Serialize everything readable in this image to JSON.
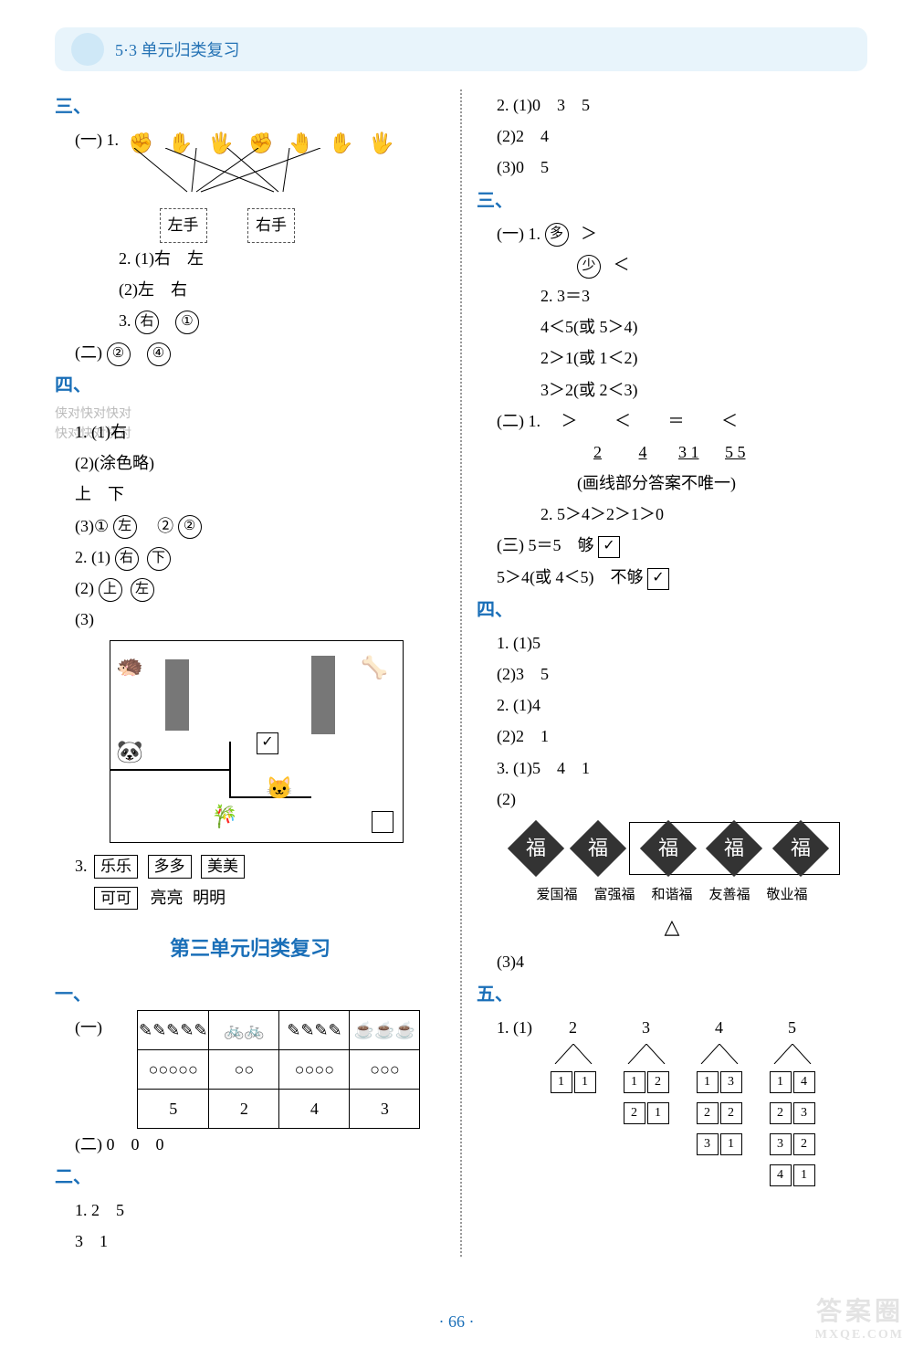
{
  "header": {
    "title": "5·3 单元归类复习"
  },
  "watermarks": {
    "kd1": "侠对快对快对",
    "kd2": "快对快对快对",
    "br_top": "答案圈",
    "br_sub": "MXQE.COM"
  },
  "page_number": "· 66 ·",
  "left": {
    "sec3": "三、",
    "s3_1_prefix": "(一) 1.",
    "hands_left_label": "左手",
    "hands_right_label": "右手",
    "s3_1_2": "2.  (1)右　左",
    "s3_1_2b": "    (2)左　右",
    "s3_1_3_pre": "3. ",
    "s3_1_3_a": "右",
    "s3_1_3_b": "①",
    "s3_2_pre": "(二) ",
    "s3_2_a": "②",
    "s3_2_b": "④",
    "sec4": "四、",
    "s4_1_1": "1.  (1)右",
    "s4_1_2": "    (2)(涂色略)",
    "s4_1_2b": "        上　下",
    "s4_1_3_pre": "    (3)①",
    "s4_1_3_a": "左",
    "s4_1_3_mid": "　②",
    "s4_1_3_b": "②",
    "s4_2_1_pre": "2.  (1)",
    "s4_2_1_a": "右",
    "s4_2_1_b": "下",
    "s4_2_2_pre": "    (2)",
    "s4_2_2_a": "上",
    "s4_2_2_b": "左",
    "s4_2_3": "    (3)",
    "maze_check": "✓",
    "s4_3_r1": [
      "乐乐",
      "多多",
      "美美"
    ],
    "s4_3_r2": [
      "可可",
      "亮亮",
      "明明"
    ],
    "unit_title": "第三单元归类复习",
    "sec1": "一、",
    "t_row1": [
      "✎✎✎✎✎",
      "🚲🚲",
      "✎✎✎✎",
      "☕☕☕"
    ],
    "t_row2": [
      "○○○○○",
      "○○",
      "○○○○",
      "○○○"
    ],
    "t_row3": [
      "5",
      "2",
      "4",
      "3"
    ],
    "s1_2": "(二) 0　0　0",
    "sec2": "二、",
    "s2_1": "1.  2　5",
    "s2_1b": "    3　1"
  },
  "right": {
    "r_top_1": "2.  (1)0　3　5",
    "r_top_2": "    (2)2　4",
    "r_top_3": "    (3)0　5",
    "sec3": "三、",
    "r3_1_pre": "(一) 1. ",
    "r3_1_a": "多",
    "r3_1_a2": "＞",
    "r3_1_b": "少",
    "r3_1_b2": "＜",
    "r3_2a": "2.  3＝3",
    "r3_2b": "    4＜5(或 5＞4)",
    "r3_2c": "    2＞1(或 1＜2)",
    "r3_2d": "    3＞2(或 2＜3)",
    "r3_ii_1_pre": "(二) 1.  ",
    "r3_ii_1_ops": [
      "＞",
      "＜",
      "＝",
      "＜"
    ],
    "r3_ii_1_nums": [
      "2",
      "4",
      "3  1",
      "5  5"
    ],
    "r3_ii_note": "(画线部分答案不唯一)",
    "r3_ii_2": "2.  5＞4＞2＞1＞0",
    "r3_iii_a_pre": "(三) 5＝5　够 ",
    "r3_iii_check": "✓",
    "r3_iii_b_pre": "     5＞4(或 4＜5)　不够 ",
    "sec4": "四、",
    "r4_1a": "1.  (1)5",
    "r4_1b": "    (2)3　5",
    "r4_2a": "2.  (1)4",
    "r4_2b": "    (2)2　1",
    "r4_3a": "3.  (1)5　4　1",
    "r4_3b": "    (2)",
    "fu_char": "福",
    "fu_labels": [
      "爱国福",
      "富强福",
      "和谐福",
      "友善福",
      "敬业福"
    ],
    "triangle": "△",
    "r4_3c": "    (3)4",
    "sec5": "五、",
    "r5_pre": "1.  (1)",
    "splits": {
      "2": [
        [
          "1",
          "1"
        ]
      ],
      "3": [
        [
          "1",
          "2"
        ],
        [
          "2",
          "1"
        ]
      ],
      "4": [
        [
          "1",
          "3"
        ],
        [
          "2",
          "2"
        ],
        [
          "3",
          "1"
        ]
      ],
      "5": [
        [
          "1",
          "4"
        ],
        [
          "2",
          "3"
        ],
        [
          "3",
          "2"
        ],
        [
          "4",
          "1"
        ]
      ]
    }
  },
  "colors": {
    "accent": "#1a6fb8",
    "header_bg": "#e8f4fb",
    "text": "#000000"
  }
}
